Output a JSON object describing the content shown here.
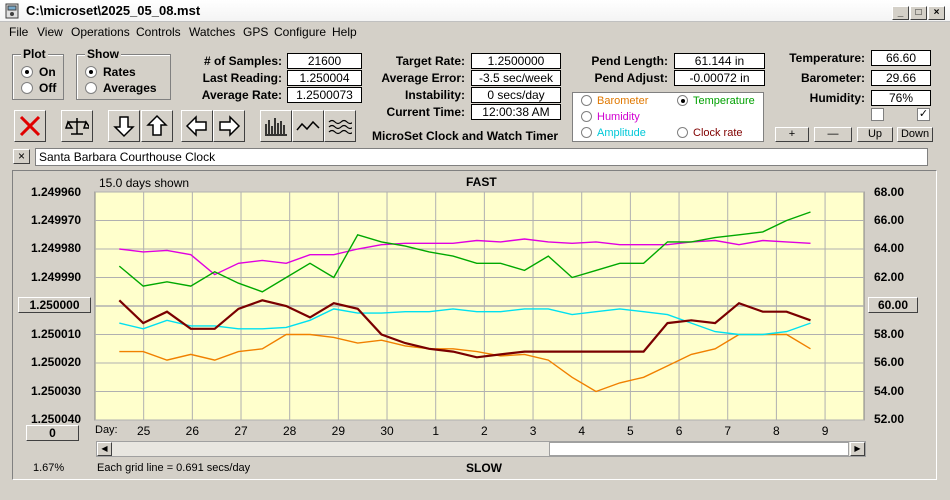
{
  "window": {
    "title": "C:\\microset\\2025_05_08.mst"
  },
  "menu": [
    "File",
    "View",
    "Operations",
    "Controls",
    "Watches",
    "GPS",
    "Configure",
    "Help"
  ],
  "plot_group": {
    "title": "Plot",
    "options": [
      "On",
      "Off"
    ],
    "selected": "On"
  },
  "show_group": {
    "title": "Show",
    "options": [
      "Rates",
      "Averages"
    ],
    "selected": "Rates"
  },
  "stats": {
    "samples_label": "# of Samples:",
    "samples": "21600",
    "last_reading_label": "Last Reading:",
    "last_reading": "1.250004",
    "average_rate_label": "Average Rate:",
    "average_rate": "1.2500073"
  },
  "timing": {
    "target_rate_label": "Target Rate:",
    "target_rate": "1.2500000",
    "average_error_label": "Average Error:",
    "average_error": "-3.5 sec/week",
    "instability_label": "Instability:",
    "instability": "0 secs/day",
    "current_time_label": "Current Time:",
    "current_time": "12:00:38 AM",
    "product_name": "MicroSet Clock and Watch Timer"
  },
  "pendulum": {
    "length_label": "Pend Length:",
    "length": "61.144 in",
    "adjust_label": "Pend Adjust:",
    "adjust": "-0.00072 in"
  },
  "aux_select": {
    "options": [
      {
        "label": "Barometer",
        "color": "#e07800",
        "selected": false
      },
      {
        "label": "Temperature",
        "color": "#00a000",
        "selected": true
      },
      {
        "label": "Humidity",
        "color": "#d000d0",
        "selected": false
      },
      {
        "label": "Amplitude",
        "color": "#00c8d8",
        "selected": false
      },
      {
        "label": "Clock rate",
        "color": "#800000",
        "selected": false
      }
    ]
  },
  "environment": {
    "temperature_label": "Temperature:",
    "temperature": "66.60",
    "barometer_label": "Barometer:",
    "barometer": "29.66",
    "humidity_label": "Humidity:",
    "humidity": "76%",
    "checkbox_left_checked": false,
    "checkbox_right_checked": true,
    "buttons": [
      "+",
      "—",
      "Up",
      "Down"
    ]
  },
  "clock_name": {
    "close_symbol": "×",
    "value": "Santa Barbara Courthouse Clock"
  },
  "chart_header": {
    "days_shown": "15.0 days shown",
    "top_label": "FAST",
    "bottom_label": "SLOW",
    "grid_note": "Each grid line = 0.691 secs/day",
    "percent": "1.67%",
    "day_prefix": "Day:"
  },
  "left_buttons": {
    "center_value": "1.250000",
    "bottom_value": "0"
  },
  "right_buttons": {
    "center_value": "60.00"
  },
  "colors": {
    "plot_bg": "#ffffcc",
    "grid": "#b0b0b0",
    "rate": "#7a0000",
    "temperature": "#00a800",
    "humidity": "#e000e0",
    "barometer": "#f08000",
    "amplitude": "#00e0f0"
  },
  "chart_data": {
    "type": "line",
    "x_label": "Day",
    "x_ticks": [
      "25",
      "26",
      "27",
      "28",
      "29",
      "30",
      "1",
      "2",
      "3",
      "4",
      "5",
      "6",
      "7",
      "8",
      "9"
    ],
    "x": [
      0,
      0.5,
      1,
      1.5,
      2,
      2.5,
      3,
      3.5,
      4,
      4.5,
      5,
      5.5,
      6,
      6.5,
      7,
      7.5,
      8,
      8.5,
      9,
      9.5,
      10,
      10.5,
      11,
      11.5,
      12,
      12.5,
      13,
      13.5,
      14,
      14.5
    ],
    "left_axis": {
      "ticks": [
        "1.249960",
        "1.249970",
        "1.249980",
        "1.249990",
        "1.250000",
        "1.250010",
        "1.250020",
        "1.250030",
        "1.250040"
      ],
      "ylim": [
        1.24996,
        1.25004
      ],
      "inverted": true
    },
    "right_axis": {
      "ticks": [
        "68.00",
        "66.00",
        "64.00",
        "62.00",
        "60.00",
        "58.00",
        "56.00",
        "54.00",
        "52.00"
      ],
      "ylim": [
        52,
        68
      ]
    },
    "series": [
      {
        "name": "Clock rate",
        "axis": "left",
        "values": [
          1.249998,
          1.250006,
          1.250002,
          1.250008,
          1.250008,
          1.250001,
          1.249998,
          1.25,
          1.250004,
          1.249999,
          1.250001,
          1.25001,
          1.250013,
          1.250015,
          1.250016,
          1.250018,
          1.250017,
          1.250016,
          1.250016,
          1.250016,
          1.250016,
          1.250016,
          1.250016,
          1.250006,
          1.250005,
          1.250006,
          1.249999,
          1.250002,
          1.250002,
          1.250005
        ]
      },
      {
        "name": "Temperature",
        "axis": "right",
        "values": [
          62.8,
          61.4,
          61.7,
          61.4,
          62.4,
          61.6,
          61.0,
          62.0,
          63.0,
          62.0,
          65.0,
          64.5,
          64.2,
          63.8,
          63.5,
          63.0,
          63.0,
          62.5,
          63.5,
          62.0,
          62.5,
          63.0,
          63.0,
          64.5,
          64.5,
          64.8,
          65.0,
          65.2,
          66.0,
          66.6
        ]
      },
      {
        "name": "Humidity",
        "axis": "right",
        "values": [
          64.0,
          63.8,
          63.9,
          63.6,
          62.2,
          63.0,
          63.2,
          63.0,
          63.6,
          63.6,
          64.0,
          64.3,
          64.4,
          64.4,
          64.4,
          64.6,
          64.5,
          64.7,
          64.5,
          64.4,
          64.5,
          64.3,
          64.3,
          64.3,
          64.5,
          64.6,
          64.3,
          64.6,
          64.5,
          64.4
        ]
      },
      {
        "name": "Barometer",
        "axis": "right",
        "values": [
          56.8,
          56.8,
          56.2,
          56.6,
          56.2,
          56.8,
          57.0,
          58.0,
          58.0,
          57.8,
          57.4,
          57.6,
          57.2,
          57.0,
          57.0,
          56.8,
          56.5,
          56.6,
          56.2,
          55.0,
          54.0,
          54.6,
          55.0,
          55.8,
          56.6,
          57.0,
          58.0,
          58.0,
          58.0,
          57.0
        ]
      },
      {
        "name": "Amplitude",
        "axis": "right",
        "values": [
          58.8,
          58.4,
          59.0,
          58.6,
          58.6,
          58.4,
          58.4,
          58.5,
          59.0,
          59.8,
          59.5,
          59.5,
          59.6,
          59.6,
          59.8,
          59.6,
          59.6,
          59.8,
          59.8,
          59.4,
          59.6,
          59.8,
          59.6,
          59.4,
          58.8,
          58.2,
          58.0,
          58.0,
          58.2,
          58.8
        ]
      }
    ]
  }
}
